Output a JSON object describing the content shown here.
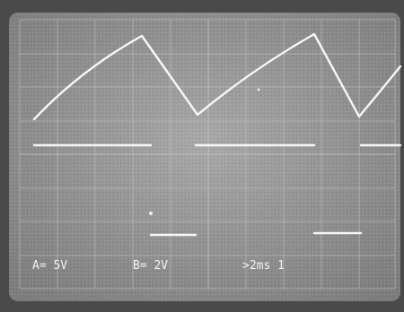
{
  "readout": {
    "channel_a": "A= 5V",
    "channel_b": "B= 2V",
    "timebase": ">2ms 1"
  }
}
